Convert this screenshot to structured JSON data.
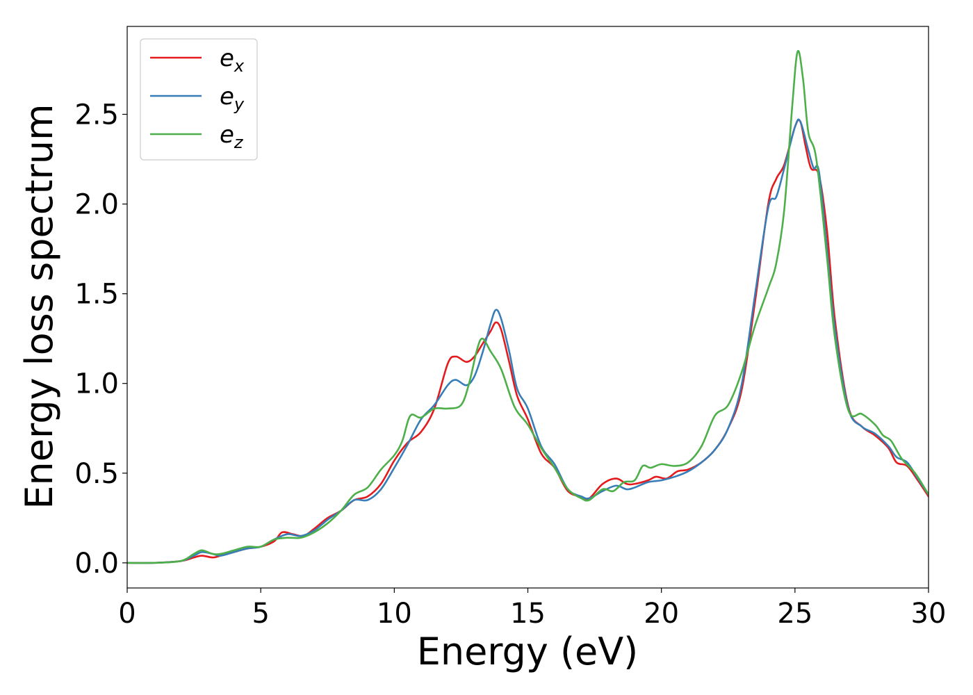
{
  "chart_data": {
    "type": "line",
    "xlabel": "Energy (eV)",
    "ylabel": "Energy loss spectrum",
    "xlim": [
      0,
      30
    ],
    "ylim": [
      -0.14,
      2.99
    ],
    "xticks": [
      0,
      5,
      10,
      15,
      20,
      25,
      30
    ],
    "yticks": [
      0.0,
      0.5,
      1.0,
      1.5,
      2.0,
      2.5
    ],
    "xtick_labels": [
      "0",
      "5",
      "10",
      "15",
      "20",
      "25",
      "30"
    ],
    "ytick_labels": [
      "0.0",
      "0.5",
      "1.0",
      "1.5",
      "2.0",
      "2.5"
    ],
    "grid": false,
    "legend_position": "top-left",
    "series": [
      {
        "name": "e_x",
        "label_base": "e",
        "label_sub": "x",
        "color": "#e41a1c",
        "points": [
          [
            0,
            0.0
          ],
          [
            1,
            0.0
          ],
          [
            2,
            0.01
          ],
          [
            2.5,
            0.03
          ],
          [
            2.8,
            0.04
          ],
          [
            3.2,
            0.03
          ],
          [
            3.5,
            0.04
          ],
          [
            4,
            0.06
          ],
          [
            4.5,
            0.08
          ],
          [
            5,
            0.09
          ],
          [
            5.5,
            0.12
          ],
          [
            5.8,
            0.17
          ],
          [
            6.2,
            0.16
          ],
          [
            6.6,
            0.15
          ],
          [
            7,
            0.19
          ],
          [
            7.5,
            0.25
          ],
          [
            8,
            0.29
          ],
          [
            8.5,
            0.35
          ],
          [
            9,
            0.37
          ],
          [
            9.5,
            0.44
          ],
          [
            10,
            0.57
          ],
          [
            10.5,
            0.67
          ],
          [
            11,
            0.73
          ],
          [
            11.5,
            0.86
          ],
          [
            12,
            1.11
          ],
          [
            12.3,
            1.15
          ],
          [
            12.7,
            1.12
          ],
          [
            13,
            1.15
          ],
          [
            13.3,
            1.22
          ],
          [
            13.6,
            1.29
          ],
          [
            13.8,
            1.34
          ],
          [
            14,
            1.3
          ],
          [
            14.3,
            1.12
          ],
          [
            14.6,
            0.93
          ],
          [
            15,
            0.8
          ],
          [
            15.5,
            0.61
          ],
          [
            16,
            0.53
          ],
          [
            16.5,
            0.4
          ],
          [
            17,
            0.37
          ],
          [
            17.3,
            0.36
          ],
          [
            17.8,
            0.44
          ],
          [
            18.3,
            0.47
          ],
          [
            18.7,
            0.44
          ],
          [
            19,
            0.44
          ],
          [
            19.5,
            0.46
          ],
          [
            19.8,
            0.48
          ],
          [
            20.2,
            0.47
          ],
          [
            20.6,
            0.51
          ],
          [
            21,
            0.52
          ],
          [
            21.5,
            0.56
          ],
          [
            22,
            0.63
          ],
          [
            22.5,
            0.75
          ],
          [
            23,
            0.96
          ],
          [
            23.5,
            1.45
          ],
          [
            24,
            2.0
          ],
          [
            24.3,
            2.14
          ],
          [
            24.6,
            2.22
          ],
          [
            25,
            2.43
          ],
          [
            25.2,
            2.46
          ],
          [
            25.4,
            2.32
          ],
          [
            25.6,
            2.2
          ],
          [
            25.9,
            2.16
          ],
          [
            26.2,
            1.85
          ],
          [
            26.5,
            1.35
          ],
          [
            27,
            0.87
          ],
          [
            27.5,
            0.76
          ],
          [
            28,
            0.71
          ],
          [
            28.5,
            0.64
          ],
          [
            28.8,
            0.56
          ],
          [
            29.2,
            0.54
          ],
          [
            29.6,
            0.46
          ],
          [
            30,
            0.37
          ]
        ]
      },
      {
        "name": "e_y",
        "label_base": "e",
        "label_sub": "y",
        "color": "#377eb8",
        "points": [
          [
            0,
            0.0
          ],
          [
            1,
            0.0
          ],
          [
            2,
            0.01
          ],
          [
            2.5,
            0.04
          ],
          [
            2.8,
            0.06
          ],
          [
            3.2,
            0.05
          ],
          [
            3.5,
            0.04
          ],
          [
            4,
            0.06
          ],
          [
            4.5,
            0.08
          ],
          [
            5,
            0.09
          ],
          [
            5.5,
            0.13
          ],
          [
            6,
            0.16
          ],
          [
            6.5,
            0.15
          ],
          [
            7,
            0.18
          ],
          [
            7.5,
            0.24
          ],
          [
            8,
            0.29
          ],
          [
            8.5,
            0.35
          ],
          [
            9,
            0.35
          ],
          [
            9.5,
            0.41
          ],
          [
            10,
            0.53
          ],
          [
            10.5,
            0.66
          ],
          [
            11,
            0.8
          ],
          [
            11.5,
            0.88
          ],
          [
            12,
            0.99
          ],
          [
            12.3,
            1.02
          ],
          [
            12.7,
            0.99
          ],
          [
            13,
            1.04
          ],
          [
            13.3,
            1.17
          ],
          [
            13.6,
            1.33
          ],
          [
            13.8,
            1.41
          ],
          [
            14,
            1.36
          ],
          [
            14.3,
            1.18
          ],
          [
            14.6,
            0.97
          ],
          [
            15,
            0.86
          ],
          [
            15.5,
            0.65
          ],
          [
            16,
            0.55
          ],
          [
            16.5,
            0.41
          ],
          [
            17,
            0.37
          ],
          [
            17.3,
            0.36
          ],
          [
            17.8,
            0.4
          ],
          [
            18.3,
            0.43
          ],
          [
            18.7,
            0.41
          ],
          [
            19,
            0.42
          ],
          [
            19.5,
            0.45
          ],
          [
            20,
            0.46
          ],
          [
            20.5,
            0.48
          ],
          [
            21,
            0.51
          ],
          [
            21.5,
            0.56
          ],
          [
            22,
            0.63
          ],
          [
            22.5,
            0.75
          ],
          [
            23,
            0.99
          ],
          [
            23.5,
            1.49
          ],
          [
            24,
            1.98
          ],
          [
            24.3,
            2.04
          ],
          [
            24.6,
            2.2
          ],
          [
            25,
            2.43
          ],
          [
            25.2,
            2.46
          ],
          [
            25.5,
            2.3
          ],
          [
            25.7,
            2.2
          ],
          [
            25.9,
            2.18
          ],
          [
            26.2,
            1.75
          ],
          [
            26.5,
            1.3
          ],
          [
            27,
            0.86
          ],
          [
            27.5,
            0.76
          ],
          [
            28,
            0.72
          ],
          [
            28.5,
            0.65
          ],
          [
            28.8,
            0.59
          ],
          [
            29.2,
            0.56
          ],
          [
            29.6,
            0.47
          ],
          [
            30,
            0.38
          ]
        ]
      },
      {
        "name": "e_z",
        "label_base": "e",
        "label_sub": "z",
        "color": "#4daf4a",
        "points": [
          [
            0,
            0.0
          ],
          [
            1,
            0.0
          ],
          [
            2,
            0.01
          ],
          [
            2.5,
            0.05
          ],
          [
            2.8,
            0.07
          ],
          [
            3.2,
            0.05
          ],
          [
            3.5,
            0.05
          ],
          [
            4,
            0.07
          ],
          [
            4.5,
            0.09
          ],
          [
            5,
            0.09
          ],
          [
            5.5,
            0.13
          ],
          [
            6,
            0.14
          ],
          [
            6.5,
            0.14
          ],
          [
            7,
            0.17
          ],
          [
            7.5,
            0.22
          ],
          [
            8,
            0.29
          ],
          [
            8.5,
            0.38
          ],
          [
            9,
            0.42
          ],
          [
            9.5,
            0.52
          ],
          [
            10,
            0.6
          ],
          [
            10.3,
            0.68
          ],
          [
            10.6,
            0.82
          ],
          [
            11,
            0.81
          ],
          [
            11.5,
            0.86
          ],
          [
            12,
            0.86
          ],
          [
            12.5,
            0.88
          ],
          [
            12.8,
            1.0
          ],
          [
            13.1,
            1.19
          ],
          [
            13.3,
            1.25
          ],
          [
            13.6,
            1.18
          ],
          [
            14,
            1.08
          ],
          [
            14.5,
            0.87
          ],
          [
            15,
            0.77
          ],
          [
            15.5,
            0.64
          ],
          [
            16,
            0.53
          ],
          [
            16.5,
            0.41
          ],
          [
            17,
            0.36
          ],
          [
            17.3,
            0.35
          ],
          [
            17.8,
            0.41
          ],
          [
            18.2,
            0.4
          ],
          [
            18.6,
            0.45
          ],
          [
            19,
            0.46
          ],
          [
            19.3,
            0.54
          ],
          [
            19.6,
            0.53
          ],
          [
            20,
            0.55
          ],
          [
            20.5,
            0.54
          ],
          [
            21,
            0.56
          ],
          [
            21.5,
            0.65
          ],
          [
            22,
            0.82
          ],
          [
            22.5,
            0.88
          ],
          [
            23,
            1.06
          ],
          [
            23.5,
            1.32
          ],
          [
            24,
            1.53
          ],
          [
            24.3,
            1.67
          ],
          [
            24.6,
            1.97
          ],
          [
            24.9,
            2.55
          ],
          [
            25.1,
            2.85
          ],
          [
            25.3,
            2.7
          ],
          [
            25.5,
            2.4
          ],
          [
            25.8,
            2.25
          ],
          [
            26.2,
            1.7
          ],
          [
            26.5,
            1.25
          ],
          [
            27,
            0.85
          ],
          [
            27.5,
            0.83
          ],
          [
            28,
            0.77
          ],
          [
            28.3,
            0.71
          ],
          [
            28.6,
            0.68
          ],
          [
            29,
            0.58
          ],
          [
            29.5,
            0.5
          ],
          [
            30,
            0.38
          ]
        ]
      }
    ]
  }
}
